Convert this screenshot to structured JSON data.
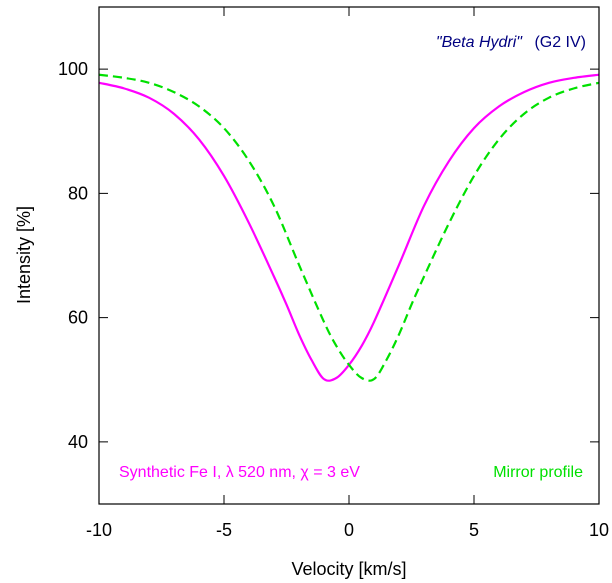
{
  "chart_data": {
    "type": "line",
    "xlabel": "Velocity [km/s]",
    "ylabel": "Intensity [%]",
    "xlim": [
      -10,
      10
    ],
    "ylim": [
      30,
      110
    ],
    "xticks": [
      {
        "value": -10,
        "label": "-10"
      },
      {
        "value": -5,
        "label": "-5"
      },
      {
        "value": 0,
        "label": "0"
      },
      {
        "value": 5,
        "label": "5"
      },
      {
        "value": 10,
        "label": "10"
      }
    ],
    "yticks": [
      {
        "value": 40,
        "label": "40"
      },
      {
        "value": 60,
        "label": "60"
      },
      {
        "value": 80,
        "label": "80"
      },
      {
        "value": 100,
        "label": "100"
      }
    ],
    "grid": false,
    "annotations": {
      "star_name": "\"Beta Hydri\"",
      "star_type": "(G2 IV)",
      "synthetic_label": "Synthetic Fe I, λ 520 nm, χ = 3 eV",
      "mirror_label": "Mirror profile"
    },
    "series": [
      {
        "color": "#ff00ff",
        "dash": "solid",
        "x": [
          -10,
          -9,
          -8,
          -7,
          -6,
          -5,
          -4,
          -3,
          -2.5,
          -2,
          -1.5,
          -1,
          -0.5,
          0,
          0.5,
          1,
          2,
          3,
          4,
          5,
          6,
          7,
          8,
          9,
          10
        ],
        "y": [
          97.8,
          96.9,
          95.4,
          92.8,
          88.7,
          82.8,
          75.2,
          66.6,
          62.1,
          57.3,
          53.2,
          50.1,
          50.3,
          52.4,
          55.4,
          59.3,
          68.5,
          78.0,
          85.2,
          90.5,
          94.0,
          96.3,
          97.8,
          98.6,
          99.1
        ]
      },
      {
        "color": "#00e000",
        "dash": "dashed",
        "x": [
          -10,
          -9,
          -8,
          -7,
          -6,
          -5,
          -4,
          -3,
          -2,
          -1,
          -0.5,
          0,
          0.5,
          1,
          1.5,
          2,
          2.5,
          3,
          4,
          5,
          6,
          7,
          8,
          9,
          10
        ],
        "y": [
          99.1,
          98.6,
          97.8,
          96.3,
          94.0,
          90.5,
          85.2,
          78.0,
          68.5,
          59.3,
          55.4,
          52.4,
          50.3,
          50.1,
          53.2,
          57.3,
          62.1,
          66.6,
          75.2,
          82.8,
          88.7,
          92.8,
          95.4,
          96.9,
          97.8
        ]
      }
    ]
  }
}
